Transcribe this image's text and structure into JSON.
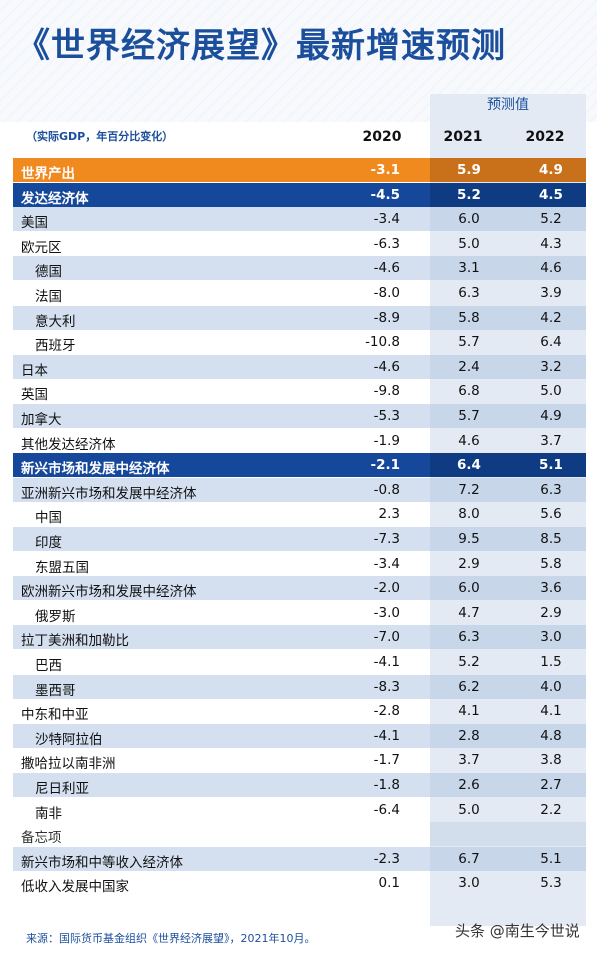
{
  "title": "《世界经济展望》最新增速预测",
  "forecast_label": "预测值",
  "unit_note": "（实际GDP，年百分比变化）",
  "years": [
    "2020",
    "2021",
    "2022"
  ],
  "source": "来源：国际货币基金组织《世界经济展望》，2021年10月。",
  "watermark": "头条 @南生今世说",
  "chart_data": {
    "type": "table",
    "columns": [
      "2020",
      "2021",
      "2022"
    ],
    "rows": [
      {
        "label": "世界产出",
        "values": [
          "-3.1",
          "5.9",
          "4.9"
        ],
        "style": "world",
        "indent": 0
      },
      {
        "label": "发达经济体",
        "values": [
          "-4.5",
          "5.2",
          "4.5"
        ],
        "style": "blue",
        "indent": 0
      },
      {
        "label": "美国",
        "values": [
          "-3.4",
          "6.0",
          "5.2"
        ],
        "style": "shade",
        "indent": 0
      },
      {
        "label": "欧元区",
        "values": [
          "-6.3",
          "5.0",
          "4.3"
        ],
        "style": "plain",
        "indent": 0
      },
      {
        "label": "德国",
        "values": [
          "-4.6",
          "3.1",
          "4.6"
        ],
        "style": "shade",
        "indent": 1
      },
      {
        "label": "法国",
        "values": [
          "-8.0",
          "6.3",
          "3.9"
        ],
        "style": "plain",
        "indent": 1
      },
      {
        "label": "意大利",
        "values": [
          "-8.9",
          "5.8",
          "4.2"
        ],
        "style": "shade",
        "indent": 1
      },
      {
        "label": "西班牙",
        "values": [
          "-10.8",
          "5.7",
          "6.4"
        ],
        "style": "plain",
        "indent": 1
      },
      {
        "label": "日本",
        "values": [
          "-4.6",
          "2.4",
          "3.2"
        ],
        "style": "shade",
        "indent": 0
      },
      {
        "label": "英国",
        "values": [
          "-9.8",
          "6.8",
          "5.0"
        ],
        "style": "plain",
        "indent": 0
      },
      {
        "label": "加拿大",
        "values": [
          "-5.3",
          "5.7",
          "4.9"
        ],
        "style": "shade",
        "indent": 0
      },
      {
        "label": "其他发达经济体",
        "values": [
          "-1.9",
          "4.6",
          "3.7"
        ],
        "style": "plain",
        "indent": 0
      },
      {
        "label": "新兴市场和发展中经济体",
        "values": [
          "-2.1",
          "6.4",
          "5.1"
        ],
        "style": "blue",
        "indent": 0
      },
      {
        "label": "亚洲新兴市场和发展中经济体",
        "values": [
          "-0.8",
          "7.2",
          "6.3"
        ],
        "style": "shade",
        "indent": 0
      },
      {
        "label": "中国",
        "values": [
          "2.3",
          "8.0",
          "5.6"
        ],
        "style": "plain",
        "indent": 1
      },
      {
        "label": "印度",
        "values": [
          "-7.3",
          "9.5",
          "8.5"
        ],
        "style": "shade",
        "indent": 1
      },
      {
        "label": "东盟五国",
        "values": [
          "-3.4",
          "2.9",
          "5.8"
        ],
        "style": "plain",
        "indent": 1
      },
      {
        "label": "欧洲新兴市场和发展中经济体",
        "values": [
          "-2.0",
          "6.0",
          "3.6"
        ],
        "style": "shade",
        "indent": 0
      },
      {
        "label": "俄罗斯",
        "values": [
          "-3.0",
          "4.7",
          "2.9"
        ],
        "style": "plain",
        "indent": 1
      },
      {
        "label": "拉丁美洲和加勒比",
        "values": [
          "-7.0",
          "6.3",
          "3.0"
        ],
        "style": "shade",
        "indent": 0
      },
      {
        "label": "巴西",
        "values": [
          "-4.1",
          "5.2",
          "1.5"
        ],
        "style": "plain",
        "indent": 1
      },
      {
        "label": "墨西哥",
        "values": [
          "-8.3",
          "6.2",
          "4.0"
        ],
        "style": "shade",
        "indent": 1
      },
      {
        "label": "中东和中亚",
        "values": [
          "-2.8",
          "4.1",
          "4.1"
        ],
        "style": "plain",
        "indent": 0
      },
      {
        "label": "沙特阿拉伯",
        "values": [
          "-4.1",
          "2.8",
          "4.8"
        ],
        "style": "shade",
        "indent": 1
      },
      {
        "label": "撒哈拉以南非洲",
        "values": [
          "-1.7",
          "3.7",
          "3.8"
        ],
        "style": "plain",
        "indent": 0
      },
      {
        "label": "尼日利亚",
        "values": [
          "-1.8",
          "2.6",
          "2.7"
        ],
        "style": "shade",
        "indent": 1
      },
      {
        "label": "南非",
        "values": [
          "-6.4",
          "5.0",
          "2.2"
        ],
        "style": "plain",
        "indent": 1
      },
      {
        "label": "备忘项",
        "values": [
          "",
          "",
          ""
        ],
        "style": "memo",
        "indent": 0
      },
      {
        "label": "新兴市场和中等收入经济体",
        "values": [
          "-2.3",
          "6.7",
          "5.1"
        ],
        "style": "shade",
        "indent": 0
      },
      {
        "label": "低收入发展中国家",
        "values": [
          "0.1",
          "3.0",
          "5.3"
        ],
        "style": "plain",
        "indent": 0
      }
    ]
  }
}
